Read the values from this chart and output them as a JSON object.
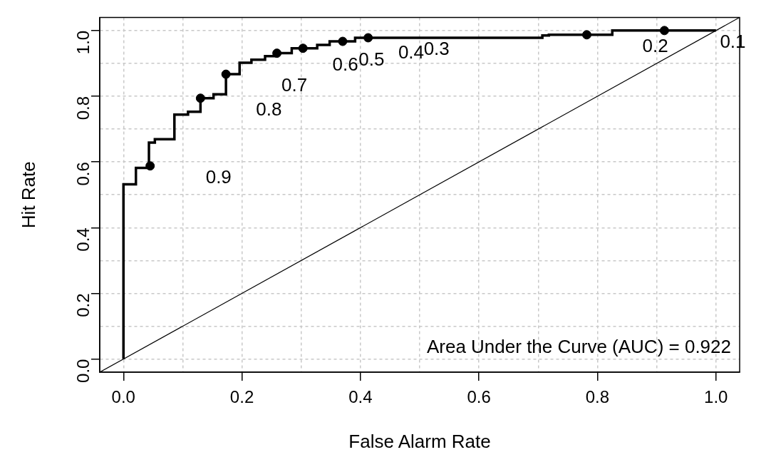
{
  "chart_data": {
    "type": "step",
    "xlabel": "False Alarm Rate",
    "ylabel": "Hit Rate",
    "xlim": [
      -0.04,
      1.04
    ],
    "ylim": [
      -0.04,
      1.04
    ],
    "xticks": [
      {
        "value": 0,
        "label": "0.0"
      },
      {
        "value": 0.1,
        "label": null
      },
      {
        "value": 0.2,
        "label": "0.2"
      },
      {
        "value": 0.3,
        "label": null
      },
      {
        "value": 0.4,
        "label": "0.4"
      },
      {
        "value": 0.5,
        "label": null
      },
      {
        "value": 0.6,
        "label": "0.6"
      },
      {
        "value": 0.7,
        "label": null
      },
      {
        "value": 0.8,
        "label": "0.8"
      },
      {
        "value": 0.9,
        "label": null
      },
      {
        "value": 1,
        "label": "1.0"
      }
    ],
    "yticks": [
      {
        "value": 0,
        "label": "0.0"
      },
      {
        "value": 0.1,
        "label": null
      },
      {
        "value": 0.2,
        "label": "0.2"
      },
      {
        "value": 0.3,
        "label": null
      },
      {
        "value": 0.4,
        "label": "0.4"
      },
      {
        "value": 0.5,
        "label": null
      },
      {
        "value": 0.6,
        "label": "0.6"
      },
      {
        "value": 0.7,
        "label": null
      },
      {
        "value": 0.8,
        "label": "0.8"
      },
      {
        "value": 0.9,
        "label": null
      },
      {
        "value": 1,
        "label": "1.0"
      }
    ],
    "grid": true,
    "legend": false,
    "series": [
      {
        "color": "#000000",
        "marker": "none",
        "x": [
          0,
          0,
          0.021,
          0.043,
          0.053,
          0.086,
          0.109,
          0.13,
          0.152,
          0.173,
          0.196,
          0.216,
          0.239,
          0.259,
          0.284,
          0.327,
          0.348,
          0.391,
          0.707,
          0.718,
          0.825,
          1.0
        ],
        "values": [
          0,
          0.532,
          0.582,
          0.659,
          0.669,
          0.744,
          0.753,
          0.794,
          0.806,
          0.867,
          0.902,
          0.911,
          0.922,
          0.931,
          0.946,
          0.956,
          0.967,
          0.978,
          0.985,
          0.987,
          1.0,
          1.0
        ]
      },
      {
        "type": "scatter",
        "color": "#000000",
        "marker": "circle",
        "x": [
          0.045,
          0.13,
          0.173,
          0.259,
          0.303,
          0.37,
          0.413,
          0.782,
          0.913
        ],
        "values": [
          0.588,
          0.794,
          0.867,
          0.931,
          0.946,
          0.967,
          0.978,
          0.987,
          1.0
        ]
      },
      {
        "type": "line",
        "color": "#000000",
        "marker": "none",
        "x": [
          -0.04,
          1.04
        ],
        "values": [
          -0.04,
          1.04
        ]
      }
    ],
    "annotations": [
      "0.9",
      "0.8",
      "0.7",
      "0.6",
      "0.5",
      "0.4",
      "0.3",
      "0.2",
      "0.1",
      "Area Under the Curve (AUC) = 0.922"
    ]
  }
}
